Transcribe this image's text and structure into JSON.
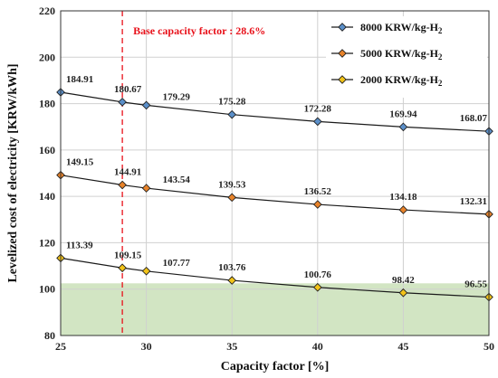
{
  "chart_data": {
    "type": "line",
    "xlabel": "Capacity factor [%]",
    "ylabel": "Levelized cost of electricity [KRW/kWh]",
    "xlim": [
      25,
      50
    ],
    "ylim": [
      80,
      220
    ],
    "xticks": [
      25,
      30,
      35,
      40,
      45,
      50
    ],
    "yticks": [
      80,
      100,
      120,
      140,
      160,
      180,
      200,
      220
    ],
    "x": [
      25,
      28.6,
      30,
      35,
      40,
      45,
      50
    ],
    "grid": true,
    "legend_position": "top-right",
    "series": [
      {
        "name": "8000 KRW/kg-H",
        "name_sub": "2",
        "color": "#5b8fc9",
        "values": [
          184.91,
          180.67,
          179.29,
          175.28,
          172.28,
          169.94,
          168.07
        ],
        "labels": [
          "184.91",
          "180.67",
          "179.29",
          "175.28",
          "172.28",
          "169.94",
          "168.07"
        ]
      },
      {
        "name": "5000 KRW/kg-H",
        "name_sub": "2",
        "color": "#e8832a",
        "values": [
          149.15,
          144.91,
          143.54,
          139.53,
          136.52,
          134.18,
          132.31
        ],
        "labels": [
          "149.15",
          "144.91",
          "143.54",
          "139.53",
          "136.52",
          "134.18",
          "132.31"
        ]
      },
      {
        "name": "2000 KRW/kg-H",
        "name_sub": "2",
        "color": "#f2c318",
        "values": [
          113.39,
          109.15,
          107.77,
          103.76,
          100.76,
          98.42,
          96.55
        ],
        "labels": [
          "113.39",
          "109.15",
          "107.77",
          "103.76",
          "100.76",
          "98.42",
          "96.55"
        ]
      }
    ],
    "annotation": {
      "text": "Base capacity factor : 28.6%",
      "x": 28.6,
      "color": "#e8111a"
    },
    "shaded_band": {
      "y_from": 80,
      "y_to": 102.5,
      "color": "#d2e5c3"
    }
  }
}
